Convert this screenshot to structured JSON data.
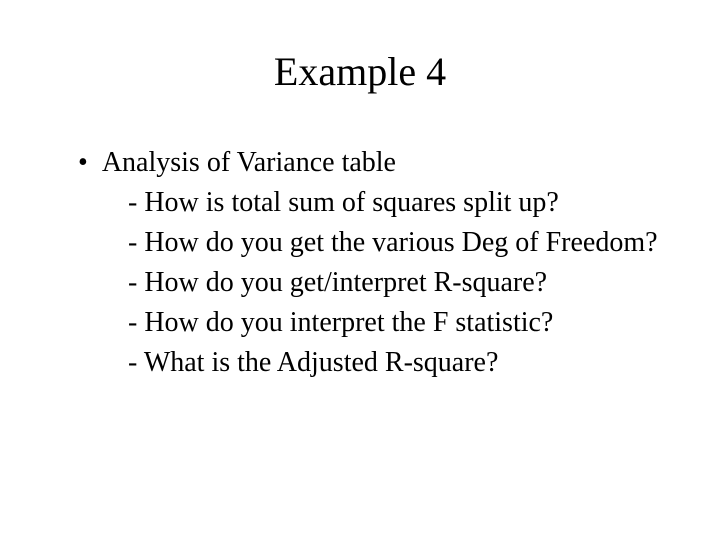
{
  "slide": {
    "title": "Example 4",
    "bullet": {
      "marker": "•",
      "heading": "Analysis of Variance table",
      "subitems": [
        "- How is total sum of squares split up?",
        "- How do you get the various Deg of Freedom?",
        "- How do you get/interpret R-square?",
        "- How do you interpret the F statistic?",
        "- What is the Adjusted R-square?"
      ]
    }
  },
  "style": {
    "background_color": "#ffffff",
    "text_color": "#000000",
    "font_family": "Times New Roman",
    "title_fontsize": 40,
    "body_fontsize": 28,
    "line_height": 40,
    "slide_width": 720,
    "slide_height": 540
  }
}
